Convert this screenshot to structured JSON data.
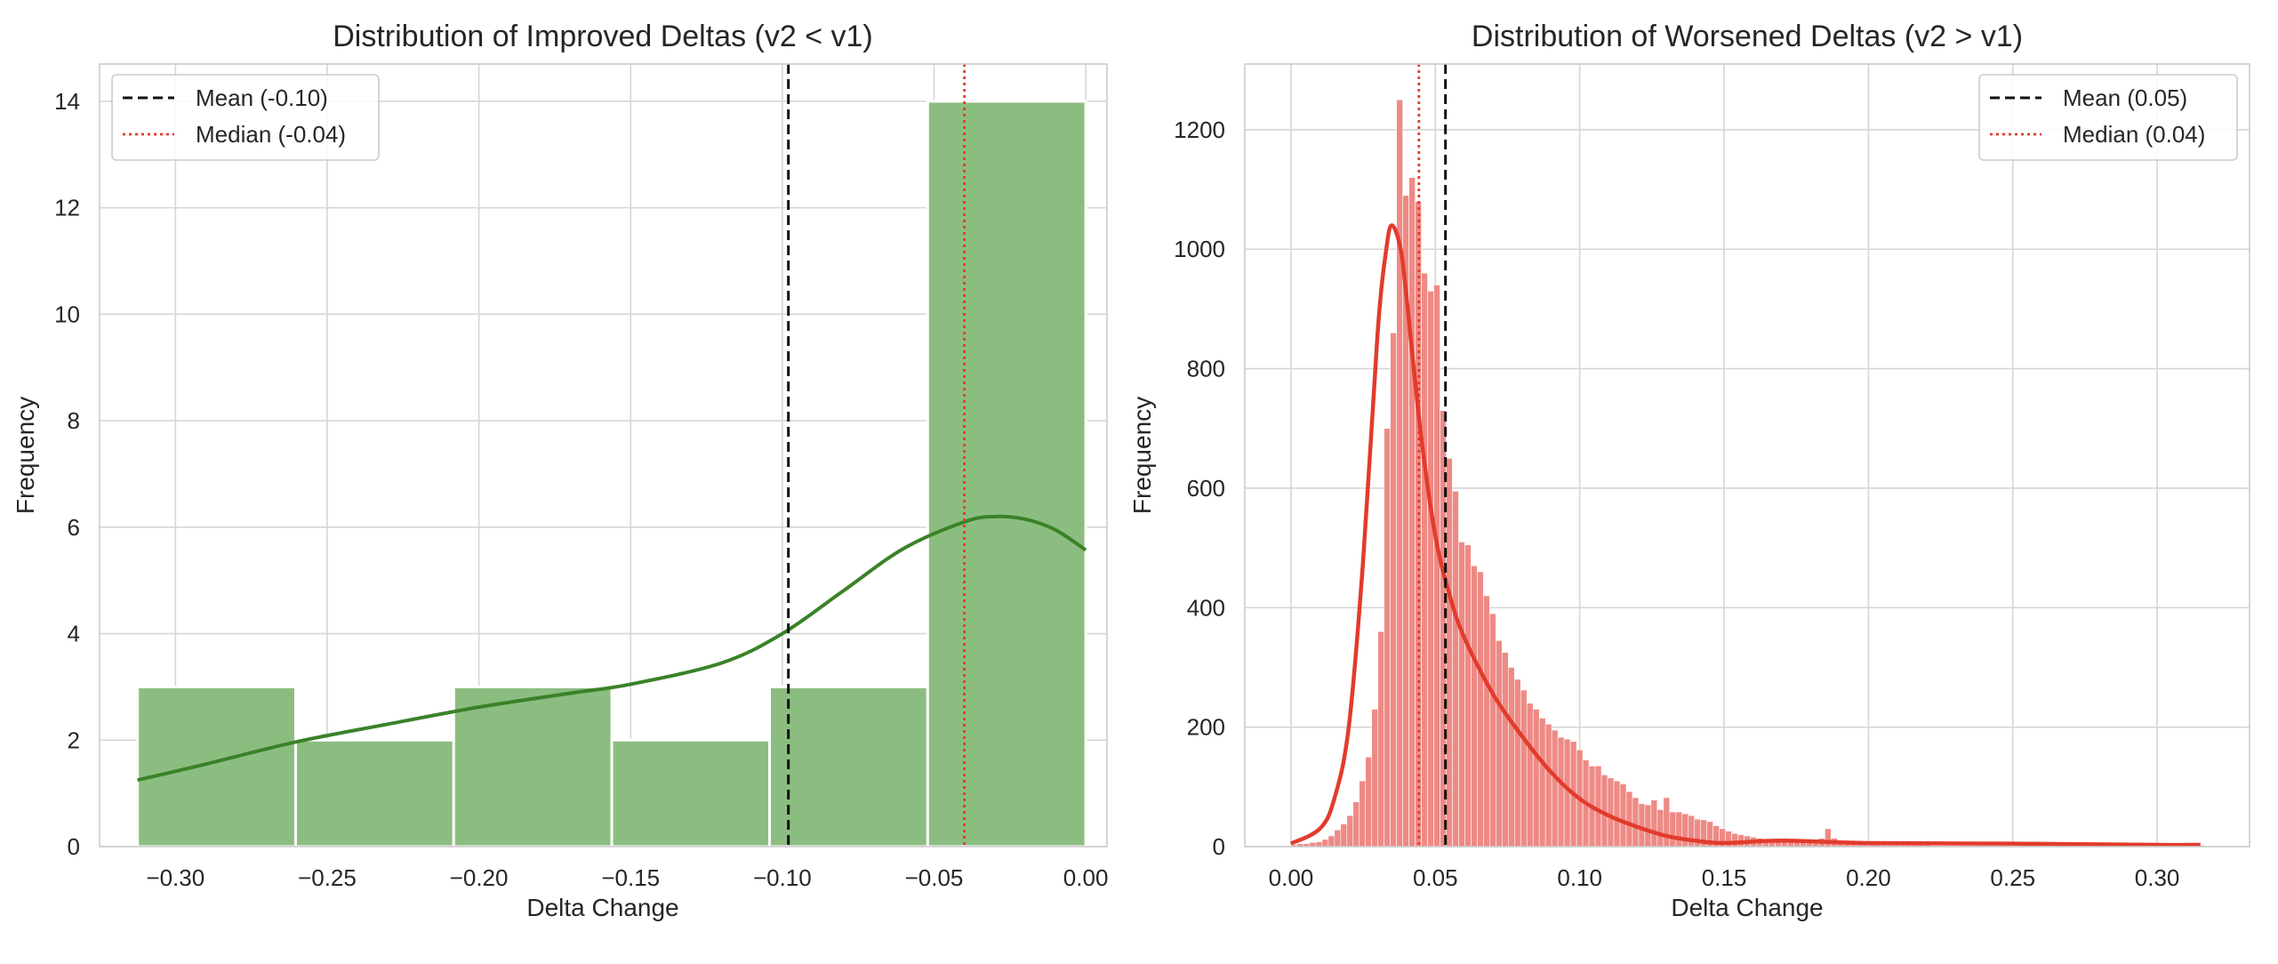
{
  "colors": {
    "improved_bar": "#8cbd80",
    "improved_kde": "#3a8228",
    "worsened_bar": "#ee8a85",
    "worsened_kde": "#e23b2c",
    "mean_line": "#111111",
    "median_line": "#e23b2c"
  },
  "chart_data": [
    {
      "type": "bar",
      "title": "Distribution of Improved Deltas (v2 < v1)",
      "xlabel": "Delta Change",
      "ylabel": "Frequency",
      "xlim": [
        -0.325,
        0.007
      ],
      "ylim": [
        0,
        14.7
      ],
      "xticks": [
        -0.3,
        -0.25,
        -0.2,
        -0.15,
        -0.1,
        -0.05,
        0.0
      ],
      "xtick_labels": [
        "−0.30",
        "−0.25",
        "−0.20",
        "−0.15",
        "−0.10",
        "−0.05",
        "0.00"
      ],
      "yticks": [
        0,
        2,
        4,
        6,
        8,
        10,
        12,
        14
      ],
      "ytick_labels": [
        "0",
        "2",
        "4",
        "6",
        "8",
        "10",
        "12",
        "14"
      ],
      "grid": true,
      "legend_position": "top-left",
      "bins": [
        {
          "x0": -0.3125,
          "x1": -0.2604,
          "count": 3
        },
        {
          "x0": -0.2604,
          "x1": -0.2083,
          "count": 2
        },
        {
          "x0": -0.2083,
          "x1": -0.1562,
          "count": 3
        },
        {
          "x0": -0.1562,
          "x1": -0.1042,
          "count": 2
        },
        {
          "x0": -0.1042,
          "x1": -0.0521,
          "count": 3
        },
        {
          "x0": -0.0521,
          "x1": 0.0,
          "count": 14
        }
      ],
      "kde": {
        "x": [
          -0.3125,
          -0.29,
          -0.26,
          -0.23,
          -0.2,
          -0.17,
          -0.15,
          -0.12,
          -0.1,
          -0.08,
          -0.06,
          -0.04,
          -0.03,
          -0.02,
          -0.01,
          0.0
        ],
        "y": [
          1.25,
          1.55,
          1.97,
          2.3,
          2.62,
          2.88,
          3.05,
          3.45,
          4.0,
          4.8,
          5.6,
          6.1,
          6.2,
          6.15,
          5.95,
          5.57
        ]
      },
      "mean": {
        "value": -0.098,
        "label": "Mean (-0.10)"
      },
      "median": {
        "value": -0.04,
        "label": "Median (-0.04)"
      }
    },
    {
      "type": "bar",
      "title": "Distribution of Worsened Deltas (v2 > v1)",
      "xlabel": "Delta Change",
      "ylabel": "Frequency",
      "xlim": [
        -0.016,
        0.332
      ],
      "ylim": [
        0,
        1310
      ],
      "xticks": [
        0.0,
        0.05,
        0.1,
        0.15,
        0.2,
        0.25,
        0.3
      ],
      "xtick_labels": [
        "0.00",
        "0.05",
        "0.10",
        "0.15",
        "0.20",
        "0.25",
        "0.30"
      ],
      "yticks": [
        0,
        200,
        400,
        600,
        800,
        1000,
        1200
      ],
      "ytick_labels": [
        "0",
        "200",
        "400",
        "600",
        "800",
        "1000",
        "1200"
      ],
      "grid": true,
      "legend_position": "top-right",
      "bin_width": 0.00215,
      "bin_start": 0.0,
      "counts": [
        3,
        5,
        5,
        7,
        8,
        12,
        18,
        28,
        38,
        52,
        75,
        110,
        150,
        230,
        360,
        700,
        860,
        1250,
        1090,
        1120,
        1080,
        960,
        930,
        940,
        730,
        650,
        595,
        510,
        505,
        470,
        460,
        420,
        390,
        345,
        325,
        300,
        280,
        262,
        240,
        230,
        215,
        205,
        195,
        183,
        180,
        176,
        162,
        145,
        135,
        135,
        120,
        115,
        110,
        105,
        92,
        82,
        72,
        70,
        78,
        62,
        82,
        58,
        58,
        55,
        52,
        46,
        45,
        42,
        35,
        30,
        26,
        22,
        20,
        18,
        16,
        14,
        12,
        12,
        10,
        9,
        8,
        8,
        7,
        7,
        10,
        14,
        30,
        14,
        8,
        6,
        6,
        5,
        4,
        4,
        4,
        3,
        3,
        3,
        3,
        3,
        3,
        3,
        3,
        2,
        2,
        2,
        2,
        2,
        2,
        2,
        2,
        2,
        2,
        2,
        2,
        2,
        2,
        2,
        2,
        2,
        2,
        2,
        2,
        2,
        2,
        2,
        2,
        2,
        2,
        2,
        2,
        2,
        2,
        2,
        2,
        2,
        2,
        2,
        2,
        2,
        2,
        2,
        2,
        2,
        2,
        2,
        2
      ],
      "kde": {
        "x": [
          0.0,
          0.01,
          0.015,
          0.02,
          0.025,
          0.03,
          0.033,
          0.035,
          0.038,
          0.04,
          0.045,
          0.05,
          0.055,
          0.06,
          0.07,
          0.08,
          0.09,
          0.1,
          0.11,
          0.12,
          0.13,
          0.14,
          0.15,
          0.17,
          0.2,
          0.25,
          0.3,
          0.315
        ],
        "y": [
          5,
          30,
          80,
          200,
          480,
          860,
          1000,
          1040,
          1000,
          920,
          690,
          520,
          420,
          350,
          255,
          185,
          125,
          80,
          52,
          33,
          18,
          10,
          6,
          10,
          6,
          5,
          3,
          3
        ]
      },
      "mean": {
        "value": 0.0535,
        "label": "Mean (0.05)"
      },
      "median": {
        "value": 0.0443,
        "label": "Median (0.04)"
      }
    }
  ]
}
